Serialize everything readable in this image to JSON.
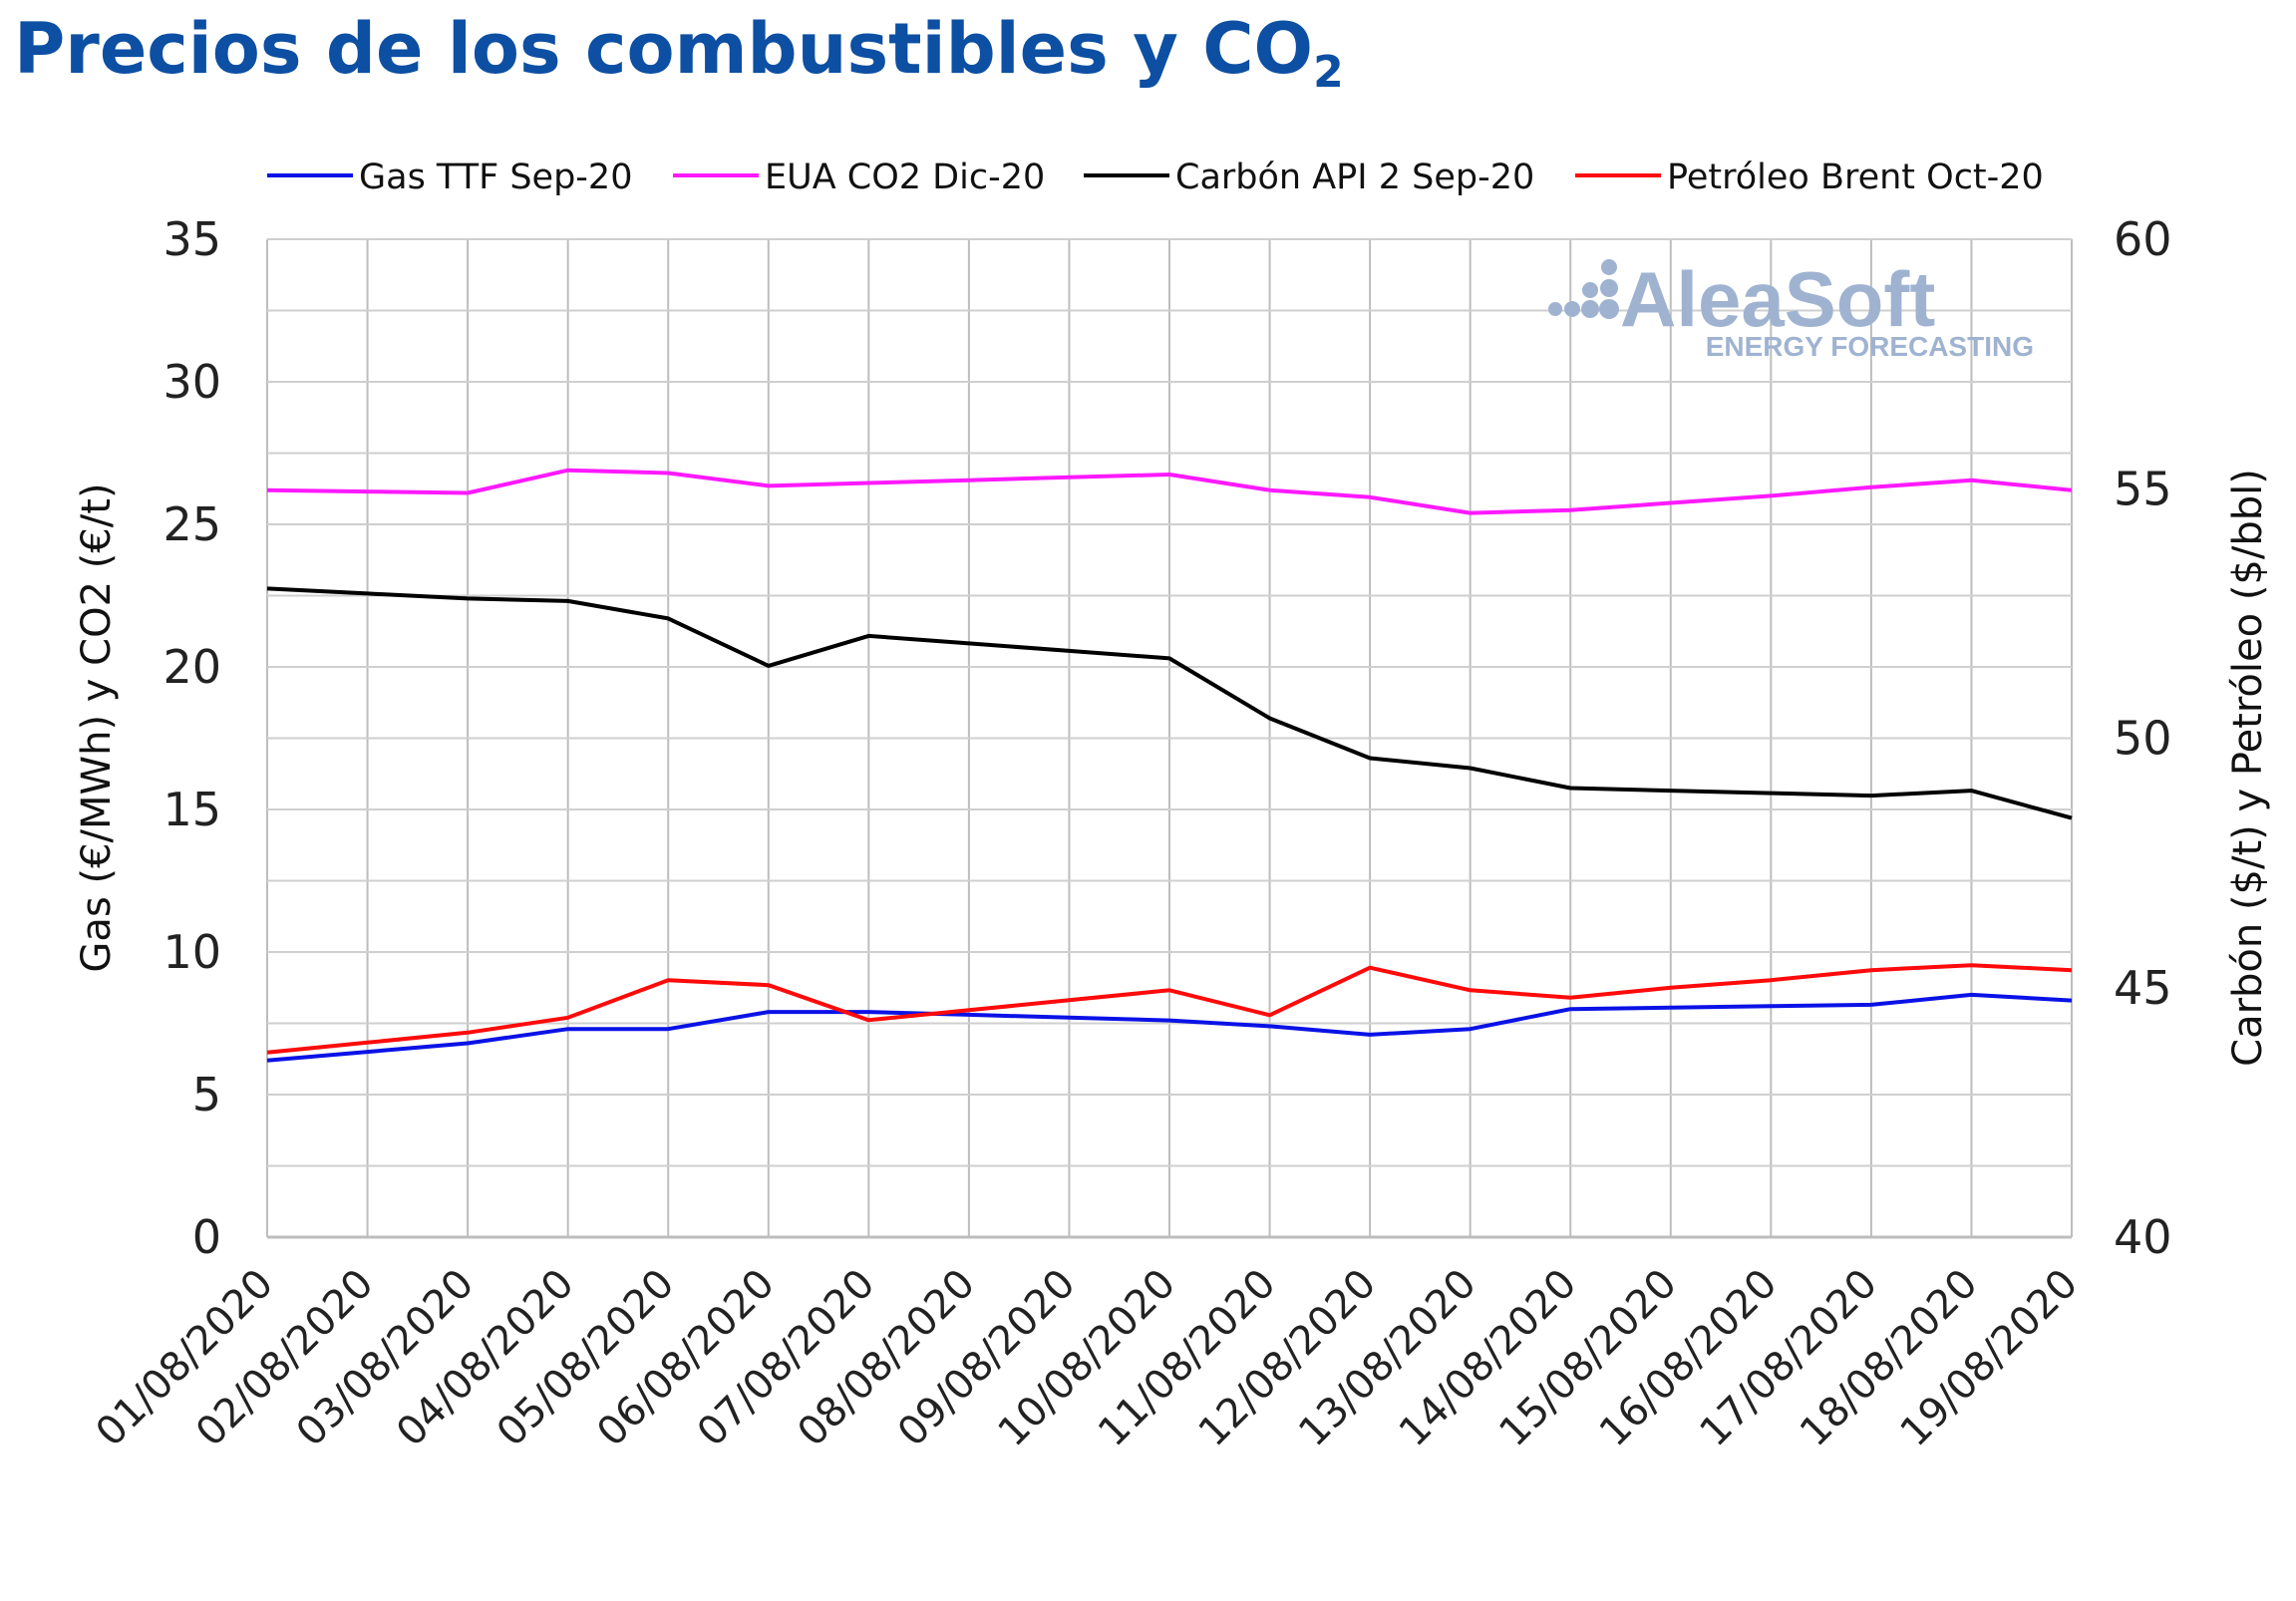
{
  "chart_data": {
    "type": "line",
    "title": "Precios de los combustibles y CO",
    "title_subscript": "2",
    "ylabel_left": "Gas (€/MWh) y CO2 (€/t)",
    "ylabel_right": "Carbón ($/t) y Petróleo ($/bbl)",
    "ylim_left": [
      0,
      35
    ],
    "yticks_left": [
      "0",
      "5",
      "10",
      "15",
      "20",
      "25",
      "30",
      "35"
    ],
    "ylim_right": [
      40,
      60
    ],
    "yticks_right": [
      "40",
      "45",
      "50",
      "55",
      "60"
    ],
    "grid": true,
    "legend_position": "top",
    "categories": [
      "01/08/2020",
      "02/08/2020",
      "03/08/2020",
      "04/08/2020",
      "05/08/2020",
      "06/08/2020",
      "07/08/2020",
      "08/08/2020",
      "09/08/2020",
      "10/08/2020",
      "11/08/2020",
      "12/08/2020",
      "13/08/2020",
      "14/08/2020",
      "15/08/2020",
      "16/08/2020",
      "17/08/2020",
      "18/08/2020",
      "19/08/2020"
    ],
    "series": [
      {
        "name": "Gas TTF Sep-20",
        "axis": "left",
        "color": "#0a12e6",
        "values": [
          6.2,
          6.5,
          6.8,
          7.3,
          7.3,
          7.9,
          7.9,
          7.8,
          7.7,
          7.6,
          7.4,
          7.1,
          7.3,
          8.0,
          8.05,
          8.1,
          8.15,
          8.5,
          8.3
        ]
      },
      {
        "name": "EUA CO2 Dic-20",
        "axis": "left",
        "color": "#ff19ff",
        "values": [
          26.2,
          26.15,
          26.1,
          26.9,
          26.8,
          26.35,
          26.45,
          26.55,
          26.65,
          26.75,
          26.2,
          25.95,
          25.4,
          25.5,
          25.75,
          26.0,
          26.3,
          26.55,
          26.2
        ]
      },
      {
        "name": "Carbón API 2 Sep-20",
        "axis": "right",
        "color": "#000000",
        "values": [
          53.0,
          52.9,
          52.8,
          52.75,
          52.4,
          51.45,
          52.05,
          51.9,
          51.75,
          51.6,
          50.4,
          49.6,
          49.4,
          49.0,
          48.95,
          48.9,
          48.85,
          48.95,
          48.4
        ]
      },
      {
        "name": "Petróleo Brent Oct-20",
        "axis": "right",
        "color": "#ff0a0a",
        "values": [
          43.7,
          43.9,
          44.1,
          44.4,
          45.15,
          45.05,
          44.35,
          44.55,
          44.75,
          44.95,
          44.45,
          45.4,
          44.95,
          44.8,
          45.0,
          45.15,
          45.35,
          45.45,
          45.35
        ]
      }
    ]
  },
  "watermark": {
    "brand": "AleaSoft",
    "tagline": "ENERGY FORECASTING",
    "color": "#9fb3d1"
  }
}
